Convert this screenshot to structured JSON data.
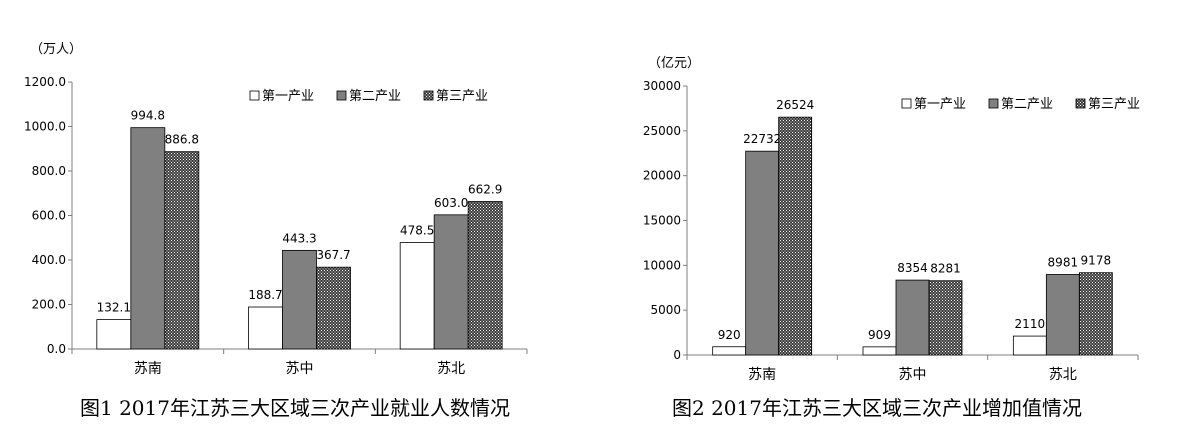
{
  "chart_data": [
    {
      "type": "bar",
      "unit": "（万人）",
      "categories": [
        "苏南",
        "苏中",
        "苏北"
      ],
      "yticks": [
        "0.0",
        "200.0",
        "400.0",
        "600.0",
        "800.0",
        "1000.0",
        "1200.0"
      ],
      "ylim": [
        0,
        1200
      ],
      "legend_position": "top-right",
      "series": [
        {
          "name": "第一产业",
          "values": [
            132.1,
            188.7,
            478.5
          ],
          "labels": [
            "132.1",
            "188.7",
            "478.5"
          ],
          "fill": "white"
        },
        {
          "name": "第二产业",
          "values": [
            994.8,
            443.3,
            603.0
          ],
          "labels": [
            "994.8",
            "443.3",
            "603.0"
          ],
          "fill": "gray"
        },
        {
          "name": "第三产业",
          "values": [
            886.8,
            367.7,
            662.9
          ],
          "labels": [
            "886.8",
            "367.7",
            "662.9"
          ],
          "fill": "pattern"
        }
      ],
      "caption": "图1 2017年江苏三大区域三次产业就业人数情况"
    },
    {
      "type": "bar",
      "unit": "（亿元）",
      "categories": [
        "苏南",
        "苏中",
        "苏北"
      ],
      "yticks": [
        "0",
        "5000",
        "10000",
        "15000",
        "20000",
        "25000",
        "30000"
      ],
      "ylim": [
        0,
        30000
      ],
      "legend_position": "top-right",
      "series": [
        {
          "name": "第一产业",
          "values": [
            920,
            909,
            2110
          ],
          "labels": [
            "920",
            "909",
            "2110"
          ],
          "fill": "white"
        },
        {
          "name": "第二产业",
          "values": [
            22732,
            8354,
            8981
          ],
          "labels": [
            "22732",
            "8354",
            "8981"
          ],
          "fill": "gray"
        },
        {
          "name": "第三产业",
          "values": [
            26524,
            8281,
            9178
          ],
          "labels": [
            "26524",
            "8281",
            "9178"
          ],
          "fill": "pattern"
        }
      ],
      "caption": "图2 2017年江苏三大区域三次产业增加值情况"
    }
  ],
  "colors": {
    "gray_bar": "#808080",
    "pattern_dark": "#3a3a3a",
    "pattern_light": "#ffffff",
    "axis": "#7f7f7f"
  }
}
